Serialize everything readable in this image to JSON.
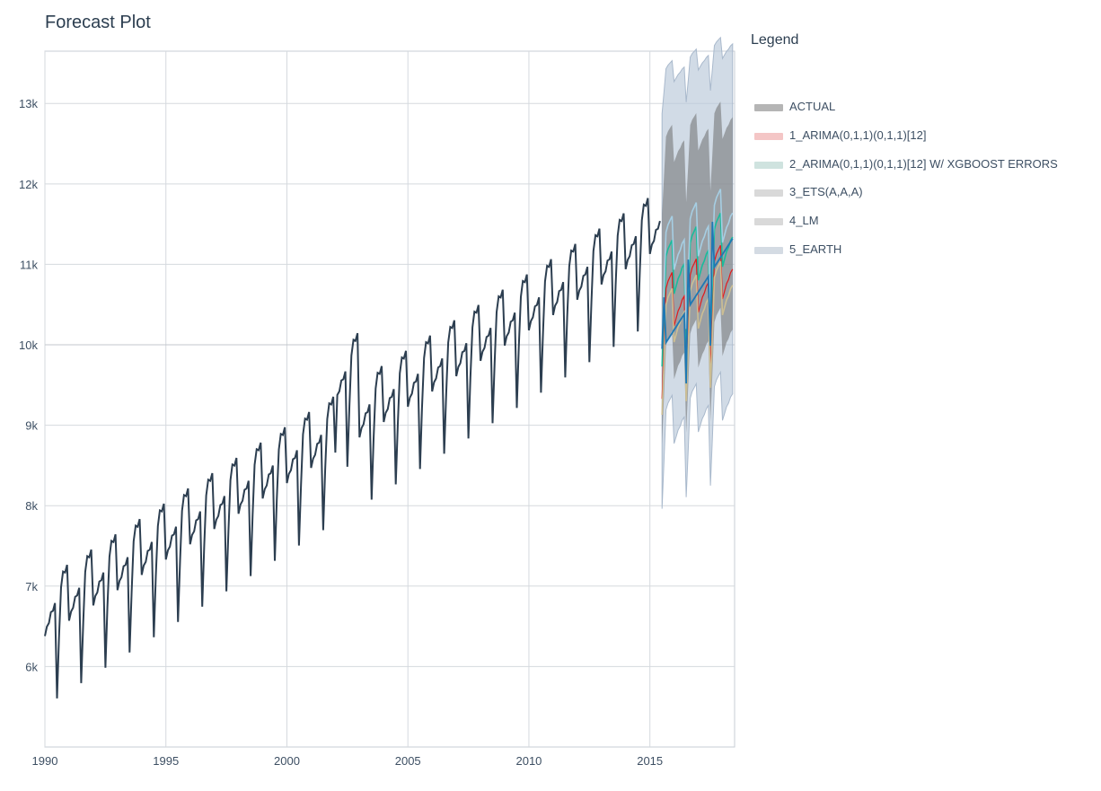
{
  "title": "Forecast Plot",
  "legend_title": "Legend",
  "chart_data": {
    "type": "line",
    "title": "Forecast Plot",
    "xlim": [
      1990,
      2018.5
    ],
    "ylim": [
      5000,
      13650
    ],
    "x_ticks": [
      1990,
      1995,
      2000,
      2005,
      2010,
      2015
    ],
    "x_tick_labels": [
      "1990",
      "1995",
      "2000",
      "2005",
      "2010",
      "2015"
    ],
    "y_ticks": [
      6000,
      7000,
      8000,
      9000,
      10000,
      11000,
      12000,
      13000
    ],
    "y_tick_labels": [
      "6k",
      "7k",
      "8k",
      "9k",
      "10k",
      "11k",
      "12k",
      "13k"
    ],
    "grid": true,
    "legend_position": "right",
    "actual_base": 6380,
    "actual_trend_per_year": 190,
    "seasonal_pattern": [
      0,
      80,
      160,
      200,
      270,
      300,
      -820,
      -170,
      520,
      600,
      640,
      680
    ],
    "series": [
      {
        "name": "ACTUAL",
        "color": "#2c3e50"
      },
      {
        "name": "1_ARIMA(0,1,1)(0,1,1)[12]",
        "color": "#e31a1c",
        "legend_color": "#f4c6c6"
      },
      {
        "name": "2_ARIMA(0,1,1)(0,1,1)[12] W/ XGBOOST ERRORS",
        "color": "#18bc9c",
        "legend_color": "#cfe3df"
      },
      {
        "name": "3_ETS(A,A,A)",
        "color": "#ccbe93",
        "legend_color": "#d9d9d9"
      },
      {
        "name": "4_LM",
        "color": "#a6cee3",
        "legend_color": "#d9d9d9"
      },
      {
        "name": "5_EARTH",
        "color": "#1f78b4",
        "legend_color": "#d4dbe3"
      }
    ],
    "forecast": {
      "start": 2015.5,
      "end": 2018.42,
      "arima_base": 10150,
      "lm_base": 10350,
      "earth_start": 9950,
      "earth_end": 11320,
      "band_outer": [
        8700,
        13200
      ],
      "band_inner": [
        9200,
        12600
      ]
    }
  }
}
